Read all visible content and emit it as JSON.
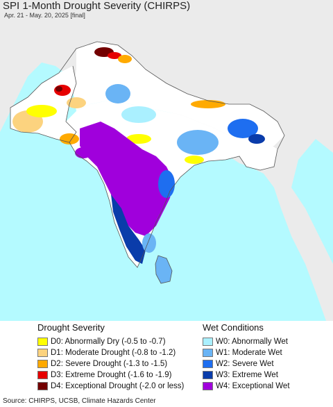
{
  "header": {
    "title": "SPI 1-Month Drought Severity (CHIRPS)",
    "subtitle": "Apr. 21 - May. 20, 2025 [final]"
  },
  "legend": {
    "drought": {
      "title": "Drought Severity",
      "items": [
        {
          "label": "D0: Abnormally Dry (-0.5 to -0.7)",
          "color": "#ffff00"
        },
        {
          "label": "D1: Moderate Drought (-0.8 to -1.2)",
          "color": "#fcd37f"
        },
        {
          "label": "D2: Severe Drought (-1.3 to -1.5)",
          "color": "#ffaa00"
        },
        {
          "label": "D3: Extreme Drought (-1.6 to -1.9)",
          "color": "#e60000"
        },
        {
          "label": "D4: Exceptional Drought (-2.0 or less)",
          "color": "#730000"
        }
      ]
    },
    "wet": {
      "title": "Wet Conditions",
      "items": [
        {
          "label": "W0: Abnormally Wet",
          "color": "#aaf0ff"
        },
        {
          "label": "W1: Moderate Wet",
          "color": "#6ab4f5"
        },
        {
          "label": "W2: Severe Wet",
          "color": "#1e6ef0"
        },
        {
          "label": "W3: Extreme Wet",
          "color": "#0a3caa"
        },
        {
          "label": "W4: Exceptional Wet",
          "color": "#a000dc"
        }
      ]
    }
  },
  "footer": {
    "source": "Source: CHIRPS, UCSB, Climate Hazards Center"
  },
  "colors": {
    "ocean": "#b4faff",
    "land": "#ffffff",
    "outside": "#ebebeb",
    "border": "#555555"
  }
}
